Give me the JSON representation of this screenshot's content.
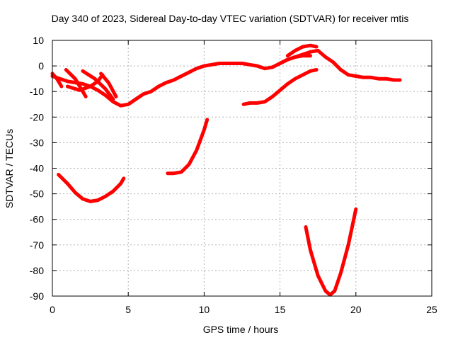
{
  "chart_data": {
    "type": "line",
    "title": "Day 340 of 2023, Sidereal Day-to-day VTEC variation (SDTVAR) for receiver mtis",
    "xlabel": "GPS time / hours",
    "ylabel": "SDTVAR / TECUs",
    "xlim": [
      0,
      25
    ],
    "ylim": [
      -90,
      10
    ],
    "xticks": [
      0,
      5,
      10,
      15,
      20,
      25
    ],
    "yticks": [
      10,
      0,
      -10,
      -20,
      -30,
      -40,
      -50,
      -60,
      -70,
      -80,
      -90
    ],
    "grid": true,
    "color": "#ff0000",
    "series": [
      {
        "name": "main-arc",
        "x": [
          0.0,
          0.5,
          1.0,
          1.5,
          2.0,
          2.5,
          3.0,
          3.5,
          4.0,
          4.5,
          5.0,
          5.5,
          6.0,
          6.5,
          7.0,
          7.5,
          8.0,
          8.5,
          9.0,
          9.5,
          10.0,
          10.5,
          11.0,
          11.5,
          12.0,
          12.5,
          13.0,
          13.5,
          14.0,
          14.5,
          15.0,
          15.5,
          16.0,
          16.5,
          17.0,
          17.5,
          18.0,
          18.5,
          19.0,
          19.5,
          20.0,
          20.5,
          21.0,
          21.5,
          22.0,
          22.5,
          22.9
        ],
        "y": [
          -4,
          -5,
          -6,
          -6.5,
          -7,
          -8,
          -9.5,
          -11.5,
          -14,
          -15.5,
          -15,
          -13,
          -11,
          -10,
          -8,
          -6.5,
          -5.5,
          -4,
          -2.5,
          -1,
          0,
          0.5,
          1,
          1,
          1,
          1,
          0.5,
          0,
          -1,
          -0.5,
          1,
          2.5,
          3.5,
          4.5,
          5.5,
          6,
          3.5,
          1.5,
          -1.5,
          -3.5,
          -4,
          -4.5,
          -4.5,
          -5,
          -5,
          -5.5,
          -5.5
        ]
      },
      {
        "name": "arc-start-a",
        "x": [
          0.0,
          0.3,
          0.6
        ],
        "y": [
          -3,
          -5,
          -8
        ]
      },
      {
        "name": "arc-a",
        "x": [
          0.9,
          1.5,
          2.2
        ],
        "y": [
          -1.5,
          -5,
          -12
        ]
      },
      {
        "name": "arc-b",
        "x": [
          1.0,
          1.8,
          2.5,
          3.0,
          3.3
        ],
        "y": [
          -8,
          -9.5,
          -8,
          -6,
          -3.5
        ]
      },
      {
        "name": "arc-c",
        "x": [
          2.0,
          2.8,
          3.5,
          4.0
        ],
        "y": [
          -2,
          -5,
          -9,
          -13
        ]
      },
      {
        "name": "arc-d",
        "x": [
          3.2,
          3.7,
          4.2
        ],
        "y": [
          -3,
          -6.5,
          -12
        ]
      },
      {
        "name": "arc-e",
        "x": [
          12.6,
          13.0,
          13.5,
          14.0,
          14.5,
          15.0,
          15.5,
          16.0,
          16.5,
          17.0,
          17.4
        ],
        "y": [
          -15,
          -14.5,
          -14.5,
          -14,
          -12,
          -9.5,
          -7,
          -5,
          -3.5,
          -2,
          -1.5
        ]
      },
      {
        "name": "arc-f",
        "x": [
          15.5,
          16.0,
          16.5,
          17.0,
          17.4
        ],
        "y": [
          4,
          6,
          7.5,
          8,
          7.5
        ]
      },
      {
        "name": "arc-g",
        "x": [
          15.0,
          15.5,
          16.0,
          16.5,
          17.0
        ],
        "y": [
          1,
          2.5,
          3.5,
          4,
          4
        ]
      },
      {
        "name": "arc-h",
        "x": [
          0.4,
          1.0,
          1.5,
          2.0,
          2.5,
          3.0,
          3.5,
          4.0,
          4.5,
          4.7
        ],
        "y": [
          -42.5,
          -46,
          -49.5,
          -52,
          -53,
          -52.5,
          -51,
          -49,
          -46,
          -44
        ]
      },
      {
        "name": "arc-i",
        "x": [
          7.6,
          8.0,
          8.5,
          9.0,
          9.5,
          10.0,
          10.2
        ],
        "y": [
          -42,
          -42,
          -41.5,
          -38.5,
          -33,
          -25,
          -21
        ]
      },
      {
        "name": "arc-j",
        "x": [
          16.7,
          17.0,
          17.5,
          18.0,
          18.3,
          18.6,
          19.0,
          19.5,
          20.0
        ],
        "y": [
          -63,
          -72,
          -82,
          -88,
          -89.5,
          -88,
          -81,
          -70,
          -56
        ]
      }
    ]
  }
}
